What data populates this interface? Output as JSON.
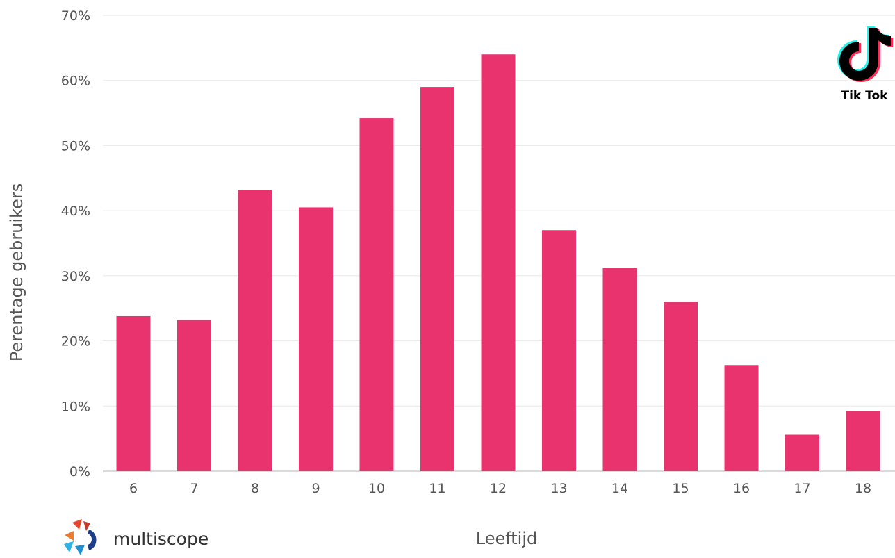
{
  "chart_data": {
    "type": "bar",
    "categories": [
      "6",
      "7",
      "8",
      "9",
      "10",
      "11",
      "12",
      "13",
      "14",
      "15",
      "16",
      "17",
      "18"
    ],
    "values": [
      23.8,
      23.2,
      43.2,
      40.5,
      54.2,
      59.0,
      64.0,
      37.0,
      31.2,
      26.0,
      16.3,
      5.6,
      9.2
    ],
    "unit": "%",
    "ylim": [
      0,
      70
    ],
    "yticks": [
      0,
      10,
      20,
      30,
      40,
      50,
      60,
      70
    ],
    "ytick_labels": [
      "0%",
      "10%",
      "20%",
      "30%",
      "40%",
      "50%",
      "60%",
      "70%"
    ],
    "xlabel": "Leeftijd",
    "ylabel": "Perentage gebruikers",
    "grid": true,
    "bar_color": "#E8336E"
  },
  "branding": {
    "source_logo": "multiscope",
    "source_logo_icon": "multiscope-logo-icon",
    "app_logo_label": "Tik Tok",
    "app_logo_icon": "tiktok-note-icon"
  }
}
